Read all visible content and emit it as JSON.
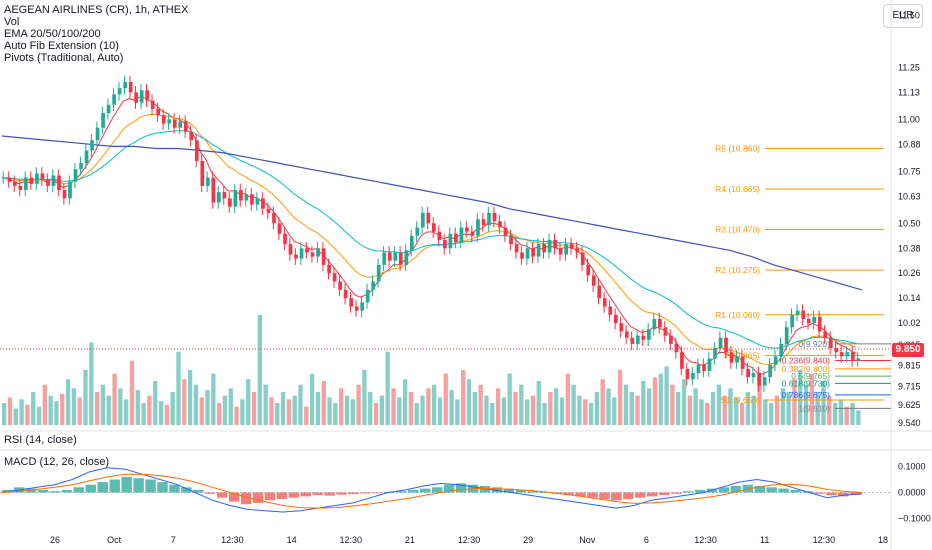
{
  "header": {
    "title": "AEGEAN AIRLINES (CR), 1h, ATHEX",
    "indicators": [
      "Vol",
      "EMA 20/50/100/200",
      "Auto Fib Extension (10)",
      "Pivots (Traditional, Auto)"
    ]
  },
  "currency_button": "EUR",
  "last_price": "9.850",
  "rsi_legend": "RSI (14, close)",
  "macd_legend": "MACD (12, 26, close)",
  "colors": {
    "up": "#22ab94",
    "down": "#f23645",
    "ema20": "#f23645",
    "ema50": "#ff9800",
    "ema100": "#00bcd4",
    "ema200": "#3f51b5",
    "pivot": "#ff9800",
    "vol_up": "#26a69a",
    "vol_down": "#ef5350"
  },
  "chart_data": [
    {
      "type": "candlestick",
      "title": "AEGEAN AIRLINES (CR), 1h, ATHEX",
      "y_ticks": [
        "11.50",
        "11.25",
        "11.13",
        "11.00",
        "10.88",
        "10.75",
        "10.63",
        "10.50",
        "10.38",
        "10.26",
        "10.14",
        "10.02",
        "9.915",
        "9.815",
        "9.715",
        "9.625",
        "9.540"
      ],
      "ylim": [
        9.53,
        11.55
      ],
      "x_ticks": [
        "26",
        "Oct",
        "7",
        "12:30",
        "14",
        "12:30",
        "21",
        "12:30",
        "29",
        "Nov",
        "6",
        "12:30",
        "11",
        "12:30",
        "18"
      ],
      "close_path": [
        10.72,
        10.7,
        10.68,
        10.66,
        10.72,
        10.69,
        10.74,
        10.71,
        10.68,
        10.73,
        10.66,
        10.62,
        10.7,
        10.76,
        10.79,
        10.85,
        10.9,
        10.96,
        11.03,
        11.07,
        11.12,
        11.15,
        11.18,
        11.13,
        11.08,
        11.14,
        11.09,
        11.05,
        11.02,
        10.98,
        11.0,
        10.96,
        10.99,
        10.94,
        10.9,
        10.8,
        10.68,
        10.72,
        10.6,
        10.65,
        10.62,
        10.58,
        10.66,
        10.61,
        10.64,
        10.59,
        10.62,
        10.57,
        10.55,
        10.5,
        10.45,
        10.4,
        10.35,
        10.33,
        10.38,
        10.36,
        10.34,
        10.38,
        10.3,
        10.26,
        10.22,
        10.18,
        10.14,
        10.1,
        10.08,
        10.12,
        10.18,
        10.22,
        10.3,
        10.36,
        10.32,
        10.36,
        10.3,
        10.37,
        10.44,
        10.48,
        10.55,
        10.5,
        10.46,
        10.42,
        10.38,
        10.45,
        10.41,
        10.48,
        10.46,
        10.44,
        10.52,
        10.49,
        10.55,
        10.51,
        10.48,
        10.44,
        10.4,
        10.36,
        10.33,
        10.38,
        10.34,
        10.4,
        10.36,
        10.42,
        10.38,
        10.35,
        10.4,
        10.38,
        10.36,
        10.3,
        10.25,
        10.2,
        10.14,
        10.1,
        10.06,
        10.02,
        9.98,
        9.95,
        9.92,
        9.96,
        9.94,
        9.99,
        10.04,
        10.0,
        9.96,
        9.92,
        9.88,
        9.8,
        9.75,
        9.78,
        9.82,
        9.79,
        9.85,
        9.9,
        9.95,
        9.88,
        9.83,
        9.86,
        9.8,
        9.76,
        9.78,
        9.72,
        9.76,
        9.82,
        9.86,
        9.92,
        10.0,
        10.06,
        10.08,
        10.04,
        10.02,
        10.05,
        9.98,
        9.95,
        9.9,
        9.88,
        9.86,
        9.88,
        9.84,
        9.85
      ],
      "reference_lines": [
        {
          "label": "R5 (10.860)",
          "value": 10.86
        },
        {
          "label": "R4 (10.665)",
          "value": 10.665
        },
        {
          "label": "R3 (10.470)",
          "value": 10.47
        },
        {
          "label": "R2 (10.275)",
          "value": 10.275
        },
        {
          "label": "R1 (10.060)",
          "value": 10.06
        },
        {
          "label": "P (9.865)",
          "value": 9.865
        },
        {
          "label": "S1 (9.650)",
          "value": 9.65
        }
      ],
      "fib_levels": [
        {
          "label": "0(9.920)",
          "value": 9.92
        },
        {
          "label": "0.236(9.840)",
          "value": 9.84
        },
        {
          "label": "0.382(9.800)",
          "value": 9.8
        },
        {
          "label": "0.5(9.765)",
          "value": 9.765
        },
        {
          "label": "0.618(9.730)",
          "value": 9.73
        },
        {
          "label": "0.786(9.675)",
          "value": 9.675
        },
        {
          "label": "1(9.610)",
          "value": 9.61
        }
      ],
      "series": [
        {
          "name": "EMA 20",
          "color": "#f23645"
        },
        {
          "name": "EMA 50",
          "color": "#ff9800"
        },
        {
          "name": "EMA 100",
          "color": "#00bcd4"
        },
        {
          "name": "EMA 200",
          "color": "#3f51b5",
          "path": [
            10.92,
            10.91,
            10.9,
            10.89,
            10.88,
            10.87,
            10.87,
            10.86,
            10.86,
            10.85,
            10.84,
            10.82,
            10.8,
            10.78,
            10.76,
            10.74,
            10.72,
            10.7,
            10.68,
            10.66,
            10.64,
            10.62,
            10.6,
            10.57,
            10.55,
            10.53,
            10.51,
            10.49,
            10.47,
            10.45,
            10.43,
            10.41,
            10.39,
            10.37,
            10.34,
            10.3,
            10.27,
            10.24,
            10.21,
            10.18
          ]
        }
      ]
    },
    {
      "type": "bar",
      "title": "Vol",
      "values": [
        12,
        15,
        9,
        14,
        11,
        18,
        10,
        22,
        16,
        13,
        17,
        25,
        20,
        15,
        30,
        45,
        18,
        22,
        16,
        28,
        20,
        14,
        35,
        19,
        12,
        16,
        24,
        13,
        11,
        18,
        40,
        25,
        30,
        22,
        15,
        19,
        28,
        12,
        16,
        20,
        10,
        14,
        25,
        18,
        60,
        22,
        15,
        12,
        18,
        14,
        16,
        22,
        10,
        28,
        18,
        24,
        15,
        12,
        20,
        16,
        14,
        22,
        30,
        18,
        12,
        16,
        40,
        20,
        15,
        25,
        18,
        12,
        16,
        20,
        22,
        15,
        28,
        19,
        14,
        30,
        25,
        18,
        22,
        16,
        12,
        20,
        15,
        28,
        18,
        22,
        14,
        16,
        24,
        12,
        18,
        20,
        15,
        28,
        22,
        16,
        14,
        12,
        18,
        25,
        20,
        15,
        30,
        22,
        18,
        16,
        24,
        20,
        26,
        28,
        32,
        22,
        18,
        25,
        16,
        20,
        14,
        12,
        18,
        22,
        16,
        20,
        15,
        12,
        18,
        16,
        22,
        14,
        12,
        16,
        20,
        18,
        25,
        30,
        22,
        28,
        18,
        24,
        16,
        12,
        14,
        10,
        12,
        8
      ]
    },
    {
      "type": "line",
      "title": "RSI (14, close)",
      "values": []
    },
    {
      "type": "bar",
      "title": "MACD (12, 26, close)",
      "y_ticks": [
        "0.1000",
        "0.0000",
        "−0.1000"
      ],
      "ylim": [
        -0.125,
        0.125
      ],
      "hist_path": [
        0.01,
        0.02,
        0.015,
        0.01,
        0.005,
        0.01,
        0.02,
        0.03,
        0.04,
        0.05,
        0.06,
        0.055,
        0.05,
        0.04,
        0.03,
        0.02,
        0.01,
        -0.005,
        -0.02,
        -0.035,
        -0.045,
        -0.04,
        -0.03,
        -0.025,
        -0.02,
        -0.015,
        -0.01,
        -0.012,
        -0.008,
        -0.006,
        -0.004,
        -0.002,
        0.002,
        0.005,
        0.01,
        0.015,
        0.02,
        0.03,
        0.035,
        0.03,
        0.025,
        0.02,
        0.015,
        0.01,
        0.005,
        0.002,
        -0.005,
        -0.01,
        -0.015,
        -0.02,
        -0.025,
        -0.03,
        -0.025,
        -0.02,
        -0.015,
        -0.01,
        -0.005,
        0.005,
        0.01,
        0.015,
        0.02,
        0.025,
        0.03,
        0.025,
        0.02,
        0.015,
        0.01,
        0.005,
        -0.005,
        -0.01,
        -0.015,
        -0.01
      ],
      "macd_path": [
        0.0,
        0.01,
        0.02,
        0.03,
        0.05,
        0.08,
        0.095,
        0.09,
        0.07,
        0.05,
        0.03,
        0.0,
        -0.03,
        -0.05,
        -0.065,
        -0.07,
        -0.075,
        -0.07,
        -0.06,
        -0.05,
        -0.04,
        -0.02,
        0.0,
        0.01,
        0.025,
        0.035,
        0.03,
        0.02,
        0.01,
        0.0,
        -0.01,
        -0.02,
        -0.03,
        -0.04,
        -0.05,
        -0.06,
        -0.05,
        -0.03,
        -0.02,
        -0.01,
        0.0,
        0.02,
        0.04,
        0.05,
        0.04,
        0.02,
        0.0,
        -0.02,
        -0.01,
        -0.005
      ],
      "signal_path": [
        0.0,
        0.005,
        0.012,
        0.02,
        0.03,
        0.045,
        0.06,
        0.07,
        0.07,
        0.065,
        0.055,
        0.04,
        0.02,
        0.0,
        -0.02,
        -0.035,
        -0.05,
        -0.058,
        -0.06,
        -0.058,
        -0.052,
        -0.044,
        -0.034,
        -0.024,
        -0.012,
        0.0,
        0.01,
        0.015,
        0.015,
        0.012,
        0.008,
        0.002,
        -0.006,
        -0.015,
        -0.025,
        -0.035,
        -0.042,
        -0.04,
        -0.035,
        -0.028,
        -0.02,
        -0.01,
        0.005,
        0.02,
        0.03,
        0.032,
        0.025,
        0.012,
        0.005,
        0.0
      ]
    }
  ]
}
